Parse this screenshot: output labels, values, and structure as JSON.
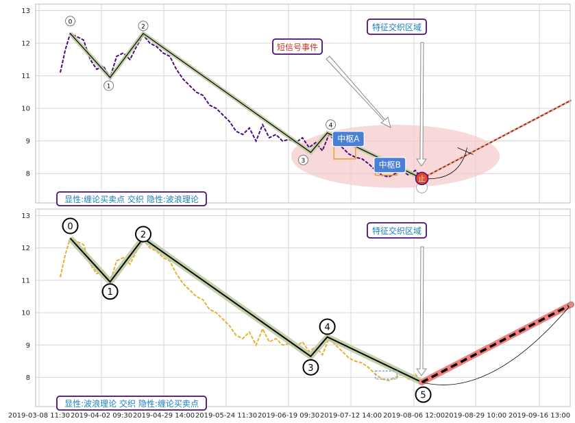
{
  "chart_data": [
    {
      "type": "line",
      "panel": "top",
      "ylim": [
        7.1,
        13.2
      ],
      "yticks": [
        8,
        9,
        10,
        11,
        12,
        13
      ],
      "price_color": "#4b0a7a",
      "price": [
        [
          0,
          11.1
        ],
        [
          3,
          11.8
        ],
        [
          6,
          12.3
        ],
        [
          10,
          12.2
        ],
        [
          14,
          12.1
        ],
        [
          18,
          11.5
        ],
        [
          22,
          11.2
        ],
        [
          26,
          11.3
        ],
        [
          30,
          10.95
        ],
        [
          34,
          11.6
        ],
        [
          38,
          11.7
        ],
        [
          42,
          11.5
        ],
        [
          46,
          11.9
        ],
        [
          50,
          12.25
        ],
        [
          54,
          12.0
        ],
        [
          58,
          11.9
        ],
        [
          62,
          11.7
        ],
        [
          66,
          11.6
        ],
        [
          70,
          11.2
        ],
        [
          74,
          10.9
        ],
        [
          78,
          10.7
        ],
        [
          82,
          10.5
        ],
        [
          86,
          10.4
        ],
        [
          90,
          10.1
        ],
        [
          94,
          10.0
        ],
        [
          98,
          9.8
        ],
        [
          102,
          9.6
        ],
        [
          106,
          9.3
        ],
        [
          110,
          9.2
        ],
        [
          114,
          9.4
        ],
        [
          118,
          9.0
        ],
        [
          122,
          9.5
        ],
        [
          126,
          9.1
        ],
        [
          130,
          9.2
        ],
        [
          134,
          9.0
        ],
        [
          138,
          9.05
        ],
        [
          142,
          8.95
        ],
        [
          146,
          9.1
        ],
        [
          150,
          8.8
        ],
        [
          154,
          8.95
        ],
        [
          158,
          8.7
        ],
        [
          162,
          9.2
        ],
        [
          166,
          9.0
        ],
        [
          170,
          8.8
        ],
        [
          174,
          8.6
        ],
        [
          178,
          8.5
        ],
        [
          182,
          8.45
        ],
        [
          186,
          8.3
        ],
        [
          190,
          8.1
        ],
        [
          194,
          7.95
        ],
        [
          198,
          7.9
        ],
        [
          202,
          8.0
        ],
        [
          206,
          8.1
        ],
        [
          210,
          7.95
        ],
        [
          214,
          8.1
        ],
        [
          218,
          7.85
        ]
      ],
      "wave_points": [
        [
          6,
          12.3,
          "0"
        ],
        [
          30,
          10.95,
          "1"
        ],
        [
          50,
          12.3,
          "2"
        ],
        [
          151,
          8.65,
          "3"
        ],
        [
          161,
          9.25,
          "4"
        ],
        [
          218,
          7.85,
          ""
        ]
      ],
      "wave_labels": [
        "0",
        "1",
        "2",
        "3",
        "4"
      ],
      "zhongshu": [
        {
          "label": "中枢A",
          "x0": 165,
          "x1": 178,
          "y0": 8.45,
          "y1": 9.0
        },
        {
          "label": "中枢B",
          "x0": 190,
          "x1": 203,
          "y0": 7.95,
          "y1": 8.2
        }
      ],
      "signal_event_label": "短信号事件",
      "feature_region_label": "特征交织区域",
      "signal_marker": "止",
      "forecast": [
        [
          218,
          7.85
        ],
        [
          308,
          10.25
        ]
      ],
      "caption": "显性:缠论买卖点 交织 隐性:波浪理论"
    },
    {
      "type": "line",
      "panel": "bottom",
      "ylim": [
        7.1,
        13.2
      ],
      "yticks": [
        8,
        9,
        10,
        11,
        12,
        13
      ],
      "price_color": "#e8b030",
      "price": [
        [
          0,
          11.1
        ],
        [
          3,
          11.8
        ],
        [
          6,
          12.3
        ],
        [
          10,
          12.2
        ],
        [
          14,
          12.1
        ],
        [
          18,
          11.5
        ],
        [
          22,
          11.2
        ],
        [
          26,
          11.3
        ],
        [
          30,
          10.95
        ],
        [
          34,
          11.6
        ],
        [
          38,
          11.7
        ],
        [
          42,
          11.5
        ],
        [
          46,
          11.9
        ],
        [
          50,
          12.25
        ],
        [
          54,
          12.0
        ],
        [
          58,
          11.9
        ],
        [
          62,
          11.7
        ],
        [
          66,
          11.6
        ],
        [
          70,
          11.2
        ],
        [
          74,
          10.9
        ],
        [
          78,
          10.7
        ],
        [
          82,
          10.5
        ],
        [
          86,
          10.4
        ],
        [
          90,
          10.1
        ],
        [
          94,
          10.0
        ],
        [
          98,
          9.8
        ],
        [
          102,
          9.6
        ],
        [
          106,
          9.3
        ],
        [
          110,
          9.2
        ],
        [
          114,
          9.4
        ],
        [
          118,
          9.0
        ],
        [
          122,
          9.5
        ],
        [
          126,
          9.1
        ],
        [
          130,
          9.2
        ],
        [
          134,
          9.0
        ],
        [
          138,
          9.05
        ],
        [
          142,
          8.95
        ],
        [
          146,
          9.1
        ],
        [
          150,
          8.8
        ],
        [
          154,
          8.95
        ],
        [
          158,
          8.7
        ],
        [
          162,
          9.2
        ],
        [
          166,
          9.0
        ],
        [
          170,
          8.8
        ],
        [
          174,
          8.6
        ],
        [
          178,
          8.5
        ],
        [
          182,
          8.45
        ],
        [
          186,
          8.3
        ],
        [
          190,
          8.1
        ],
        [
          194,
          7.95
        ],
        [
          198,
          7.9
        ],
        [
          202,
          8.0
        ],
        [
          206,
          8.1
        ],
        [
          210,
          7.95
        ],
        [
          214,
          8.1
        ],
        [
          218,
          7.85
        ]
      ],
      "wave_points": [
        [
          6,
          12.3,
          "0"
        ],
        [
          30,
          10.95,
          "1"
        ],
        [
          50,
          12.3,
          "2"
        ],
        [
          151,
          8.65,
          "3"
        ],
        [
          161,
          9.25,
          "4"
        ],
        [
          218,
          7.85,
          "5"
        ]
      ],
      "wave_labels": [
        "0",
        "1",
        "2",
        "3",
        "4",
        "5"
      ],
      "feature_region_label": "特征交织区域",
      "forecast": [
        [
          218,
          7.85
        ],
        [
          308,
          10.25
        ]
      ],
      "caption": "显性:波浪理论 交织 隐性:缠论买卖点"
    }
  ],
  "xticks": [
    "2019-03-08 11:30",
    "2019-04-02 09:30",
    "2019-04-29 14:00",
    "2019-05-24 11:30",
    "2019-06-19 09:30",
    "2019-07-12 14:00",
    "2019-08-06 12:00",
    "2019-08-29 10:00",
    "2019-09-16 13:00"
  ],
  "colors": {
    "label_border": "#4b0a7a",
    "caption_text": "#1a7fbf",
    "red_text": "#c0392b",
    "wave_line": "#000000",
    "wave_halo": "#b8c89a",
    "forecast_red": "#f08080",
    "ellipse": "#f3c9c9",
    "zs_fill": "#4a7fd6"
  }
}
